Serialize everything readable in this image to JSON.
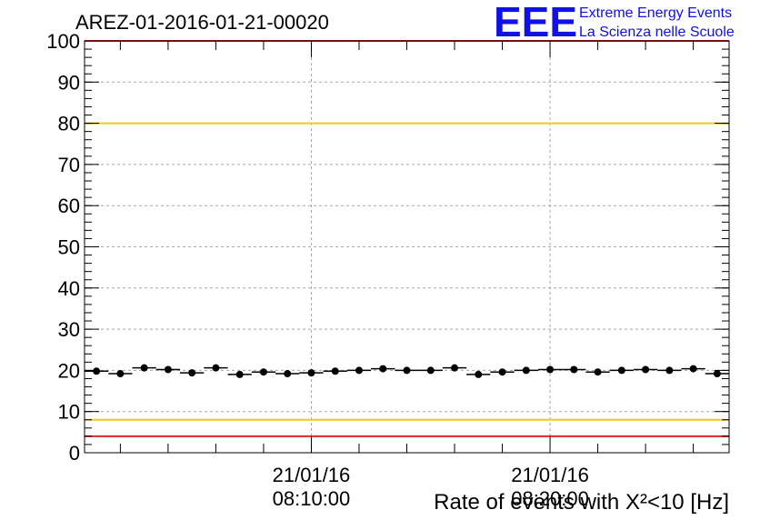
{
  "chart_data": {
    "type": "scatter",
    "title": "AREZ-01-2016-01-21-00020",
    "xlabel": "Rate of events with Χ²<10 [Hz]",
    "ylabel": "",
    "ylim": [
      0,
      100
    ],
    "yticks": [
      "0",
      "10",
      "20",
      "30",
      "40",
      "50",
      "60",
      "70",
      "80",
      "90",
      "100"
    ],
    "xlim": [
      "08:00:30",
      "08:27:30"
    ],
    "xticks": [
      {
        "date": "21/01/16",
        "time": "08:10:00"
      },
      {
        "date": "21/01/16",
        "time": "08:20:00"
      }
    ],
    "grid": true,
    "x": [
      "08:01:00",
      "08:02:00",
      "08:03:00",
      "08:04:00",
      "08:05:00",
      "08:06:00",
      "08:07:00",
      "08:08:00",
      "08:09:00",
      "08:10:00",
      "08:11:00",
      "08:12:00",
      "08:13:00",
      "08:14:00",
      "08:15:00",
      "08:16:00",
      "08:17:00",
      "08:18:00",
      "08:19:00",
      "08:20:00",
      "08:21:00",
      "08:22:00",
      "08:23:00",
      "08:24:00",
      "08:25:00",
      "08:26:00",
      "08:27:00"
    ],
    "values": [
      19.8,
      19.2,
      20.6,
      20.2,
      19.4,
      20.6,
      19.0,
      19.6,
      19.2,
      19.4,
      19.8,
      20.0,
      20.4,
      20.0,
      20.0,
      20.6,
      19.0,
      19.6,
      20.0,
      20.2,
      20.2,
      19.6,
      20.0,
      20.2,
      20.0,
      20.4,
      19.2
    ],
    "reference_lines": [
      {
        "value": 100,
        "color": "#e8241c"
      },
      {
        "value": 80,
        "color": "#f2c81e"
      },
      {
        "value": 8,
        "color": "#f2c81e"
      },
      {
        "value": 4,
        "color": "#e8241c"
      }
    ]
  },
  "logo": {
    "mark": "EEE",
    "line1": "Extreme Energy Events",
    "line2": "La Scienza nelle Scuole"
  },
  "colors": {
    "marker": "#000000",
    "logo": "#1010e8",
    "red_line": "#e8241c",
    "yellow_line": "#f2c81e"
  }
}
